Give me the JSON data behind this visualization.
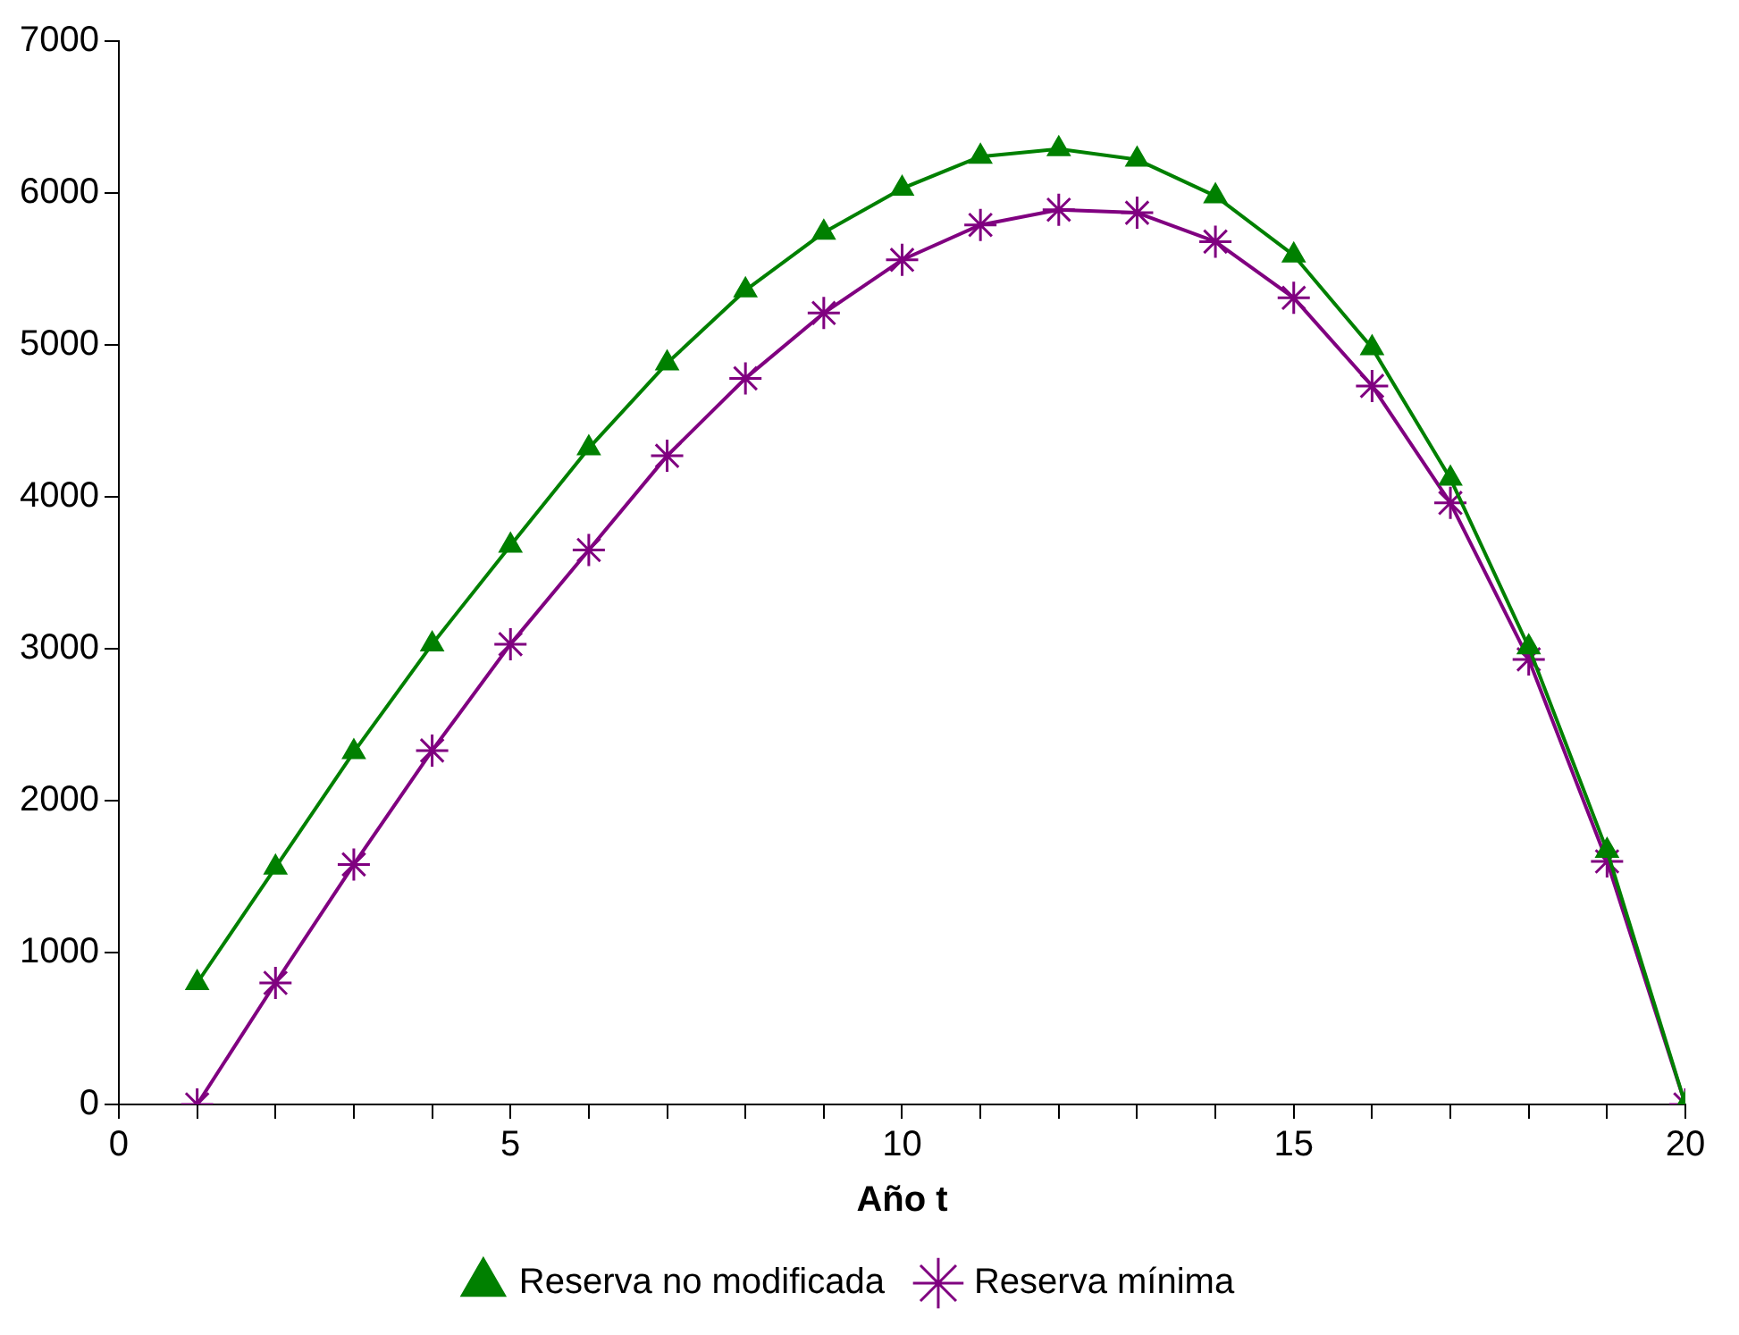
{
  "chart_data": {
    "type": "line",
    "xlabel": "Año t",
    "x": [
      1,
      2,
      3,
      4,
      5,
      6,
      7,
      8,
      9,
      10,
      11,
      12,
      13,
      14,
      15,
      16,
      17,
      18,
      19,
      20
    ],
    "series": [
      {
        "name": "Reserva no modificada",
        "color": "#008000",
        "marker": "triangle",
        "values": [
          800,
          1560,
          2320,
          3030,
          3680,
          4320,
          4880,
          5360,
          5740,
          6030,
          6240,
          6290,
          6220,
          5980,
          5590,
          4980,
          4120,
          3010,
          1670,
          0
        ]
      },
      {
        "name": "Reserva mínima",
        "color": "#800080",
        "marker": "cross",
        "values": [
          0,
          800,
          1580,
          2330,
          3030,
          3650,
          4270,
          4780,
          5210,
          5560,
          5790,
          5890,
          5870,
          5680,
          5310,
          4730,
          3960,
          2930,
          1600,
          0
        ]
      }
    ],
    "xlim": [
      0,
      20
    ],
    "ylim": [
      0,
      7000
    ],
    "xticks": [
      0,
      {
        "value": 1,
        "label": null
      },
      {
        "value": 2,
        "label": null
      },
      {
        "value": 3,
        "label": null
      },
      {
        "value": 4,
        "label": null
      },
      5,
      {
        "value": 6,
        "label": null
      },
      {
        "value": 7,
        "label": null
      },
      {
        "value": 8,
        "label": null
      },
      {
        "value": 9,
        "label": null
      },
      10,
      {
        "value": 11,
        "label": null
      },
      {
        "value": 12,
        "label": null
      },
      {
        "value": 13,
        "label": null
      },
      {
        "value": 14,
        "label": null
      },
      15,
      {
        "value": 16,
        "label": null
      },
      {
        "value": 17,
        "label": null
      },
      {
        "value": 18,
        "label": null
      },
      {
        "value": 19,
        "label": null
      },
      20
    ],
    "yticks": [
      0,
      1000,
      2000,
      3000,
      4000,
      5000,
      6000,
      7000
    ],
    "grid": false,
    "legend": "bottom",
    "line_style": "solid"
  }
}
